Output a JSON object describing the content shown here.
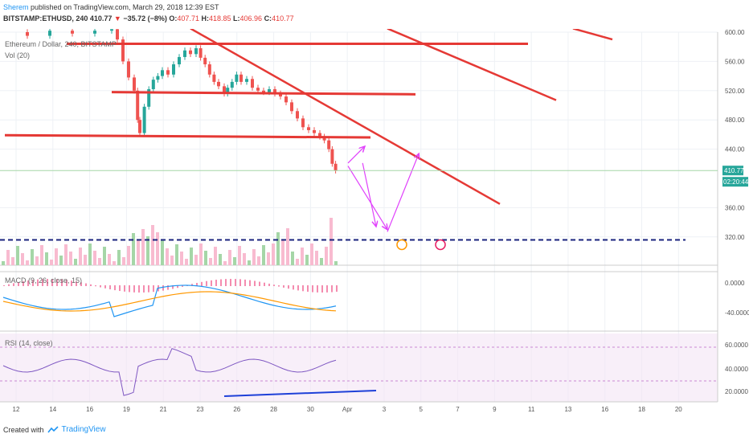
{
  "header": {
    "publisher": "Sherem",
    "published_text": "published on TradingView.com, March 29, 2018 12:39 EST",
    "symbol": "BITSTAMP:ETHUSD, 240",
    "last": "410.77",
    "change": "−35.72 (−8%)",
    "o_label": "O:",
    "o": "407.71",
    "h_label": "H:",
    "h": "418.85",
    "l_label": "L:",
    "l": "406.96",
    "c_label": "C:",
    "c": "410.77"
  },
  "footer": {
    "created_with": "Created with",
    "brand": "TradingView"
  },
  "chart_data": {
    "type": "candlestick",
    "title": "Ethereum / Dollar, 240, BITSTAMP",
    "volume_label": "Vol (20)",
    "x_ticks": [
      "12",
      "14",
      "16",
      "19",
      "21",
      "23",
      "26",
      "28",
      "30",
      "Apr",
      "3",
      "5",
      "7",
      "9",
      "11",
      "13",
      "16",
      "18",
      "20"
    ],
    "price_axis": {
      "min": 300,
      "max": 600,
      "ticks": [
        600,
        560,
        520,
        480,
        440,
        360,
        320
      ]
    },
    "last_price_label": "410.77",
    "countdown_label": "02:20:44",
    "price_path": [
      [
        0,
        600
      ],
      [
        2,
        595
      ],
      [
        4,
        602
      ],
      [
        6,
        598
      ],
      [
        8,
        602
      ],
      [
        9.5,
        604
      ],
      [
        10,
        590
      ],
      [
        10.5,
        560
      ],
      [
        11,
        538
      ],
      [
        11.5,
        520
      ],
      [
        11.8,
        480
      ],
      [
        12,
        462
      ],
      [
        12.4,
        498
      ],
      [
        12.8,
        522
      ],
      [
        13.2,
        535
      ],
      [
        13.6,
        540
      ],
      [
        14,
        548
      ],
      [
        14.5,
        542
      ],
      [
        15,
        556
      ],
      [
        15.5,
        566
      ],
      [
        16,
        575
      ],
      [
        16.5,
        570
      ],
      [
        17,
        578
      ],
      [
        17.4,
        565
      ],
      [
        17.8,
        556
      ],
      [
        18.2,
        542
      ],
      [
        18.6,
        532
      ],
      [
        19,
        526
      ],
      [
        19.5,
        516
      ],
      [
        19.8,
        524
      ],
      [
        20.2,
        532
      ],
      [
        20.6,
        542
      ],
      [
        21,
        532
      ],
      [
        21.5,
        536
      ],
      [
        22,
        524
      ],
      [
        22.5,
        520
      ],
      [
        23,
        518
      ],
      [
        23.5,
        522
      ],
      [
        24,
        516
      ],
      [
        24.5,
        512
      ],
      [
        25,
        504
      ],
      [
        25.5,
        492
      ],
      [
        26,
        482
      ],
      [
        26.5,
        470
      ],
      [
        27,
        466
      ],
      [
        27.5,
        462
      ],
      [
        28,
        457
      ],
      [
        28.4,
        452
      ],
      [
        28.8,
        440
      ],
      [
        29.1,
        420
      ],
      [
        29.4,
        410.77
      ]
    ],
    "volume_bars_hint": "volume histogram below price, pink and green bars",
    "support_resistance": [
      {
        "x0": 5.5,
        "y0": 584,
        "x1": 46.5,
        "y1": 584
      },
      {
        "x0": 9.5,
        "y0": 518,
        "x1": 36.5,
        "y1": 515
      },
      {
        "x0": 0,
        "y0": 459,
        "x1": 32.5,
        "y1": 456
      }
    ],
    "trend_lines": [
      {
        "x0": 16.5,
        "y0": 605,
        "x1": 44,
        "y1": 365
      },
      {
        "x0": 34,
        "y0": 605,
        "x1": 49,
        "y1": 507
      },
      {
        "x0": 50.5,
        "y0": 605,
        "x1": 54,
        "y1": 590
      }
    ],
    "dashed_level": 316,
    "arrows": [
      [
        [
          30.5,
          421
        ],
        [
          32,
          444
        ]
      ],
      [
        [
          30.5,
          417
        ],
        [
          34,
          330
        ]
      ],
      [
        [
          31.8,
          421
        ],
        [
          33,
          334
        ]
      ],
      [
        [
          34,
          327
        ],
        [
          36.8,
          434
        ]
      ]
    ],
    "macd": {
      "label": "MACD (9, 26, close, 15)",
      "ticks": [
        "0.0000",
        "-40.0000"
      ]
    },
    "rsi": {
      "label": "RSI (14, close)",
      "ticks": [
        "60.0000",
        "40.0000",
        "20.0000"
      ],
      "divergence_start": 19.5,
      "divergence_end": 33
    }
  }
}
